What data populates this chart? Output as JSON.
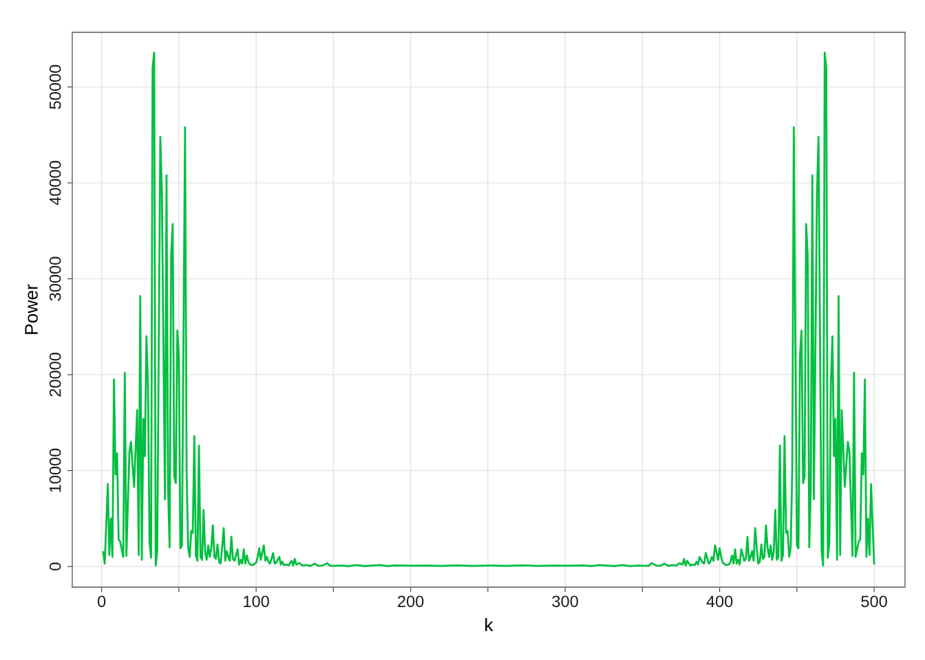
{
  "chart_data": {
    "type": "line",
    "xlabel": "k",
    "ylabel": "Power",
    "xlim": [
      -19,
      520
    ],
    "ylim": [
      -2150,
      55700
    ],
    "xticks": [
      0,
      {
        "value": 50,
        "label": null
      },
      100,
      {
        "value": 150,
        "label": null
      },
      200,
      {
        "value": 250,
        "label": null
      },
      300,
      {
        "value": 350,
        "label": null
      },
      400,
      {
        "value": 450,
        "label": null
      },
      500
    ],
    "yticks": [
      0,
      10000,
      20000,
      30000,
      40000,
      50000
    ],
    "grid": true,
    "legend": false,
    "marker": "none",
    "line_style": "solid",
    "series": [
      {
        "color": "#00bf40",
        "x": [
          1,
          2,
          4,
          5,
          6,
          7,
          8,
          9,
          10,
          11,
          12,
          14,
          15,
          16,
          18,
          19,
          21,
          23,
          24,
          25,
          26,
          27,
          28,
          29,
          30,
          31,
          32,
          33,
          34,
          35,
          36,
          38,
          39,
          41,
          42,
          43,
          44,
          45,
          46,
          47,
          48,
          49,
          50,
          51,
          52,
          54,
          55,
          56,
          57,
          58,
          59,
          60,
          61,
          62,
          63,
          64,
          65,
          66,
          67,
          68,
          69,
          70,
          71,
          72,
          73,
          74,
          75,
          76,
          77,
          78,
          79,
          80,
          81,
          82,
          83,
          84,
          85,
          86,
          87,
          88,
          89,
          90,
          91,
          92,
          93,
          94,
          95,
          96,
          98,
          100,
          101,
          102,
          103,
          105,
          106,
          107,
          108,
          109,
          111,
          112,
          113,
          115,
          116,
          117,
          118,
          120,
          121,
          123,
          124,
          125,
          126,
          128,
          130,
          133,
          135,
          138,
          140,
          143,
          146,
          148,
          155,
          160,
          165,
          170,
          175,
          180,
          185,
          190,
          200,
          210,
          220,
          230,
          240,
          250,
          252,
          262,
          272,
          282,
          292,
          302,
          312,
          317,
          322,
          327,
          332,
          337,
          342,
          347,
          354,
          356,
          359,
          362,
          364,
          367,
          369,
          372,
          374,
          376,
          377,
          378,
          379,
          381,
          382,
          384,
          385,
          386,
          387,
          389,
          390,
          391,
          393,
          394,
          395,
          396,
          397,
          399,
          400,
          401,
          402,
          404,
          406,
          407,
          408,
          409,
          410,
          411,
          412,
          413,
          414,
          415,
          416,
          417,
          418,
          419,
          420,
          421,
          422,
          423,
          424,
          425,
          426,
          427,
          428,
          429,
          430,
          431,
          432,
          433,
          434,
          435,
          436,
          437,
          438,
          439,
          440,
          441,
          442,
          443,
          444,
          445,
          446,
          447,
          448,
          450,
          451,
          452,
          453,
          454,
          455,
          456,
          457,
          458,
          459,
          460,
          461,
          463,
          464,
          466,
          467,
          468,
          469,
          470,
          471,
          472,
          473,
          474,
          475,
          476,
          477,
          478,
          479,
          481,
          483,
          484,
          486,
          487,
          488,
          490,
          491,
          492,
          493,
          494,
          495,
          496,
          497,
          498,
          500
        ],
        "values": [
          1500,
          300,
          8600,
          1200,
          5000,
          1000,
          19500,
          9600,
          11800,
          2800,
          2600,
          1000,
          20200,
          1100,
          12000,
          13000,
          8300,
          16300,
          1200,
          28200,
          700,
          15400,
          11500,
          24000,
          19000,
          2500,
          900,
          52000,
          53600,
          100,
          1600,
          44800,
          39000,
          7000,
          40800,
          8200,
          2000,
          32500,
          35700,
          9400,
          8700,
          24600,
          22000,
          1900,
          2200,
          45800,
          10000,
          2000,
          1000,
          3700,
          3500,
          13600,
          1200,
          600,
          12600,
          1000,
          700,
          5900,
          1500,
          700,
          2200,
          1000,
          2000,
          4300,
          1000,
          800,
          2300,
          500,
          300,
          2000,
          4000,
          600,
          1600,
          1000,
          600,
          3100,
          800,
          600,
          1200,
          1800,
          200,
          700,
          300,
          1800,
          300,
          1150,
          500,
          200,
          150,
          400,
          1000,
          1900,
          700,
          2200,
          600,
          1000,
          500,
          300,
          1400,
          300,
          400,
          1000,
          200,
          500,
          150,
          200,
          100,
          600,
          100,
          800,
          200,
          350,
          100,
          150,
          50,
          300,
          80,
          100,
          350,
          60,
          100,
          50,
          150,
          50,
          100,
          150,
          50,
          120,
          80,
          100,
          60,
          120,
          70,
          100,
          100,
          70,
          120,
          60,
          100,
          80,
          120,
          50,
          150,
          100,
          50,
          150,
          50,
          100,
          60,
          350,
          100,
          80,
          300,
          50,
          150,
          100,
          350,
          200,
          800,
          100,
          600,
          100,
          200,
          150,
          500,
          200,
          1000,
          400,
          300,
          1400,
          300,
          500,
          1000,
          600,
          2200,
          700,
          1900,
          1000,
          400,
          150,
          200,
          500,
          1150,
          300,
          1800,
          300,
          700,
          200,
          1800,
          1200,
          600,
          800,
          3100,
          600,
          1000,
          1600,
          600,
          4000,
          2000,
          300,
          500,
          2300,
          800,
          1000,
          4300,
          2000,
          1000,
          2200,
          700,
          1500,
          5900,
          700,
          1000,
          12600,
          600,
          1200,
          13600,
          3500,
          3700,
          1000,
          2000,
          10000,
          45800,
          2200,
          1900,
          22000,
          24600,
          8700,
          9400,
          35700,
          32500,
          2000,
          8200,
          40800,
          7000,
          39000,
          44800,
          1600,
          100,
          53600,
          52000,
          900,
          2500,
          19000,
          24000,
          11500,
          15400,
          700,
          28200,
          1200,
          16300,
          8300,
          13000,
          12000,
          1100,
          20200,
          1000,
          2600,
          2800,
          11800,
          9600,
          19500,
          1000,
          5000,
          1200,
          8600,
          300
        ]
      }
    ]
  }
}
